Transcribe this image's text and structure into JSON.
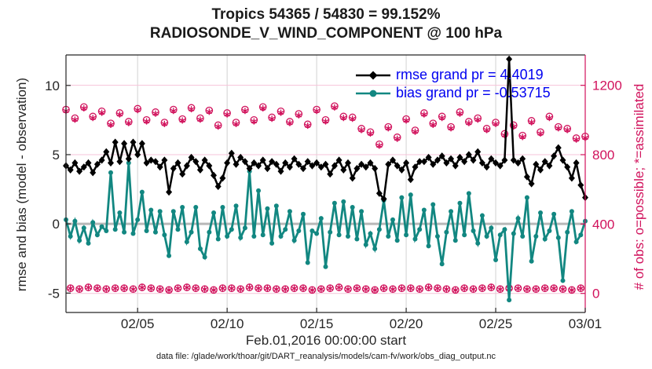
{
  "title": {
    "line1": "Tropics 54365 / 54830 = 99.152%",
    "line2": "RADIOSONDE_V_WIND_COMPONENT @ 100 hPa"
  },
  "xlabel": "Feb.01,2016 00:00:00 start",
  "footer": "data file: /glade/work/thoar/git/DART_reanalysis/models/cam-fv/work/obs_diag_output.nc",
  "legend": {
    "items": [
      {
        "series": "rmse",
        "label": "rmse grand pr = 4.4019"
      },
      {
        "series": "bias",
        "label": "bias grand pr = -0.53715"
      }
    ],
    "text_color": "#0000f0"
  },
  "colors": {
    "rmse": "#000000",
    "bias": "#128781",
    "obs": "#d1125c",
    "obs_grid": "#f6c3d8",
    "x_grid": "#d2d2d2",
    "zero_line": "#b8b8b8",
    "axis_text": "#262626"
  },
  "chart_data": {
    "type": "line",
    "title": "Tropics 54365 / 54830 = 99.152% | RADIOSONDE_V_WIND_COMPONENT @ 100 hPa",
    "x_unit": "days since Feb 01 2016 00:00 UTC, 6-hourly samples",
    "x_step_days": 0.25,
    "x_range_days": [
      0,
      29
    ],
    "x_ticks": [
      {
        "day": 4,
        "label": "02/05"
      },
      {
        "day": 9,
        "label": "02/10"
      },
      {
        "day": 14,
        "label": "02/15"
      },
      {
        "day": 19,
        "label": "02/20"
      },
      {
        "day": 24,
        "label": "02/25"
      },
      {
        "day": 29,
        "label": "03/01"
      }
    ],
    "left_axis": {
      "label": "rmse and bias (model - observation)",
      "ticks": [
        -5,
        0,
        5,
        10
      ],
      "range": [
        -6.4,
        12.2
      ]
    },
    "right_axis": {
      "label": "# of obs: o=possible; *=assimilated",
      "ticks": [
        0,
        400,
        800,
        1200
      ],
      "range": [
        -110,
        1375
      ]
    },
    "grand_pr": {
      "rmse": 4.4019,
      "bias": -0.53715
    },
    "grid": {
      "vertical_at_x_ticks": true,
      "horizontal_at_right_ticks": true,
      "zero_line_left_axis": true
    },
    "legend_position": "top-right-inside-transparent",
    "series": [
      {
        "name": "rmse",
        "axis": "left",
        "marker": "diamond",
        "color": "#000000",
        "values": [
          4.2,
          3.9,
          4.4,
          3.8,
          4.1,
          4.4,
          3.7,
          4.3,
          4.6,
          5.2,
          4.4,
          5.9,
          4.5,
          5.8,
          4.7,
          5.9,
          5.0,
          5.8,
          4.4,
          4.6,
          4.5,
          4.1,
          4.6,
          2.3,
          4.0,
          4.4,
          3.6,
          4.2,
          4.8,
          4.5,
          3.9,
          4.6,
          4.2,
          3.5,
          2.7,
          3.3,
          4.4,
          5.1,
          4.3,
          4.8,
          4.5,
          4.0,
          4.4,
          4.2,
          4.6,
          4.0,
          4.5,
          4.3,
          3.8,
          4.4,
          4.1,
          4.7,
          4.3,
          4.0,
          4.5,
          4.2,
          4.4,
          4.1,
          4.3,
          3.6,
          4.2,
          4.6,
          3.9,
          4.4,
          3.3,
          4.0,
          4.3,
          4.1,
          4.4,
          4.0,
          2.2,
          1.8,
          4.3,
          4.6,
          4.2,
          3.9,
          4.4,
          3.2,
          4.1,
          4.5,
          4.5,
          4.8,
          4.3,
          4.6,
          4.9,
          4.4,
          4.7,
          4.2,
          4.8,
          4.5,
          5.0,
          4.6,
          5.2,
          4.4,
          4.1,
          4.7,
          4.4,
          4.2,
          4.6,
          11.9,
          4.6,
          4.4,
          4.7,
          3.4,
          2.9,
          4.3,
          3.9,
          4.5,
          4.2,
          4.9,
          5.5,
          4.6,
          4.1,
          3.3,
          4.4,
          2.8,
          1.9
        ]
      },
      {
        "name": "bias",
        "axis": "left",
        "marker": "circle",
        "color": "#128781",
        "values": [
          0.3,
          -0.9,
          0.2,
          -1.2,
          -0.3,
          -1.4,
          0.1,
          -0.8,
          -0.2,
          -0.5,
          3.7,
          -0.4,
          0.8,
          -0.6,
          4.4,
          -0.7,
          0.3,
          2.3,
          -0.5,
          1.0,
          -0.6,
          0.9,
          -0.8,
          -2.3,
          0.9,
          -0.4,
          1.2,
          -1.3,
          -0.6,
          1.2,
          -1.8,
          -2.4,
          -0.6,
          0.8,
          -1.1,
          1.2,
          -0.9,
          -0.4,
          1.3,
          -1.0,
          -0.3,
          3.8,
          -0.9,
          2.4,
          -0.8,
          1.1,
          -1.4,
          1.3,
          -0.9,
          -0.4,
          0.9,
          -1.2,
          -0.5,
          0.7,
          -2.8,
          -0.5,
          -0.7,
          0.4,
          -3.1,
          -0.6,
          1.5,
          -0.8,
          1.6,
          -0.9,
          1.2,
          -1.1,
          0.9,
          -1.5,
          -0.7,
          -1.8,
          -0.4,
          1.7,
          -0.9,
          0.3,
          -1.2,
          1.9,
          -0.8,
          2.1,
          -1.1,
          -0.4,
          1.0,
          -1.6,
          1.4,
          -0.9,
          -2.9,
          -0.6,
          0.9,
          -1.2,
          1.5,
          -0.8,
          2.2,
          -0.5,
          -1.4,
          0.6,
          -0.9,
          -0.3,
          -2.6,
          -0.8,
          -0.4,
          -5.5,
          -0.7,
          0.4,
          -0.9,
          1.9,
          -2.7,
          -0.9,
          0.8,
          -1.1,
          -0.5,
          0.7,
          -1.0,
          -4.1,
          -0.6,
          0.9,
          -1.3,
          -0.8,
          0.2
        ]
      },
      {
        "name": "possible",
        "axis": "right",
        "marker": "o",
        "color": "#d1125c",
        "values": [
          1060,
          30,
          1010,
          25,
          1075,
          35,
          1020,
          30,
          1050,
          25,
          980,
          30,
          1040,
          30,
          990,
          25,
          1065,
          35,
          1000,
          30,
          1045,
          25,
          985,
          20,
          1060,
          30,
          1005,
          35,
          1070,
          30,
          1010,
          25,
          1055,
          20,
          970,
          30,
          1040,
          30,
          985,
          25,
          1060,
          35,
          1000,
          30,
          1075,
          30,
          1015,
          25,
          1050,
          25,
          990,
          30,
          1035,
          30,
          975,
          20,
          1060,
          25,
          1000,
          30,
          1080,
          35,
          1020,
          25,
          1015,
          30,
          950,
          25,
          930,
          20,
          860,
          30,
          960,
          25,
          900,
          30,
          1005,
          30,
          940,
          25,
          1040,
          35,
          980,
          30,
          1020,
          25,
          960,
          20,
          1045,
          30,
          990,
          25,
          1010,
          30,
          950,
          35,
          985,
          25,
          920,
          30,
          970,
          30,
          910,
          25,
          995,
          25,
          930,
          30,
          1020,
          30,
          960,
          25,
          950,
          20,
          895,
          30,
          905
        ]
      },
      {
        "name": "assimilated",
        "axis": "right",
        "marker": "*",
        "color": "#d1125c",
        "values": [
          1052,
          29,
          1002,
          24,
          1067,
          34,
          1012,
          29,
          1042,
          24,
          972,
          29,
          1032,
          29,
          982,
          24,
          1057,
          34,
          992,
          29,
          1037,
          24,
          977,
          19,
          1052,
          29,
          997,
          34,
          1062,
          29,
          1002,
          24,
          1047,
          19,
          962,
          29,
          1032,
          29,
          977,
          24,
          1052,
          34,
          992,
          29,
          1067,
          29,
          1007,
          24,
          1042,
          24,
          982,
          29,
          1027,
          29,
          967,
          19,
          1052,
          24,
          992,
          29,
          1072,
          34,
          1012,
          24,
          1007,
          29,
          942,
          24,
          922,
          19,
          852,
          29,
          952,
          24,
          892,
          29,
          997,
          29,
          932,
          24,
          1032,
          34,
          972,
          29,
          1012,
          24,
          952,
          19,
          1037,
          29,
          982,
          24,
          1002,
          29,
          942,
          34,
          977,
          24,
          912,
          29,
          962,
          29,
          902,
          24,
          987,
          24,
          922,
          29,
          1012,
          29,
          952,
          24,
          942,
          19,
          887,
          29,
          897
        ]
      }
    ]
  }
}
